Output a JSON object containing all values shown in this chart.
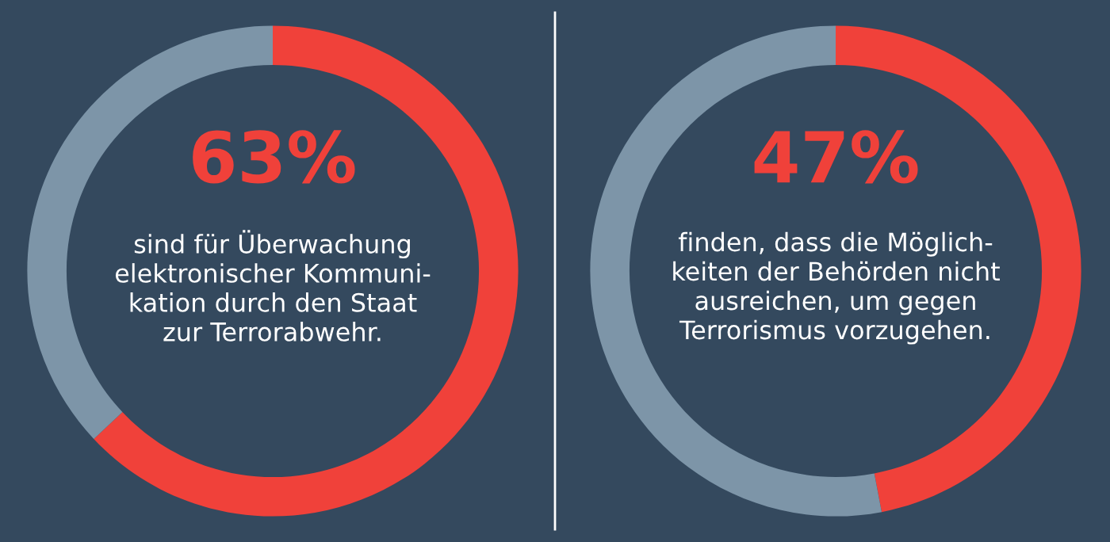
{
  "chart_data": [
    {
      "type": "donut",
      "categories": [
        null,
        null
      ],
      "values": [
        63,
        37
      ],
      "colors": [
        "#f0413a",
        "#7d95a8"
      ],
      "value_labels": [
        "63%",
        null
      ],
      "annotations": [
        "sind für Überwachung\nelektronischer Kommuni-\nkation durch den Staat\nzur Terrorabwehr."
      ]
    },
    {
      "type": "donut",
      "categories": [
        null,
        null
      ],
      "values": [
        47,
        53
      ],
      "colors": [
        "#f0413a",
        "#7d95a8"
      ],
      "value_labels": [
        "47%",
        null
      ],
      "annotations": [
        "finden, dass die Möglich-\nkeiten der Behörden nicht\nausreichen, um gegen\nTerrorismus vorzugehen."
      ]
    }
  ]
}
